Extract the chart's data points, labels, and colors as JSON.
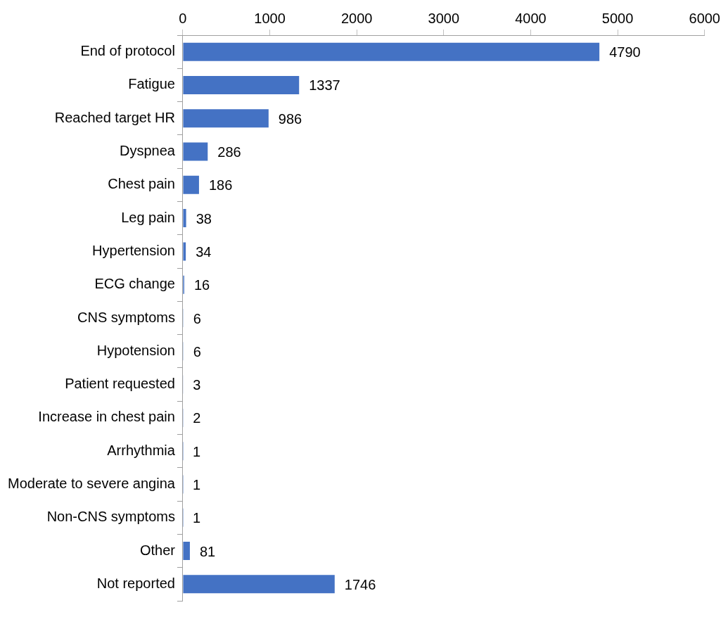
{
  "chart_data": {
    "type": "bar",
    "orientation": "horizontal",
    "categories": [
      "End of protocol",
      "Fatigue",
      "Reached target HR",
      "Dyspnea",
      "Chest pain",
      "Leg pain",
      "Hypertension",
      "ECG change",
      "CNS symptoms",
      "Hypotension",
      "Patient requested",
      "Increase in chest pain",
      "Arrhythmia",
      "Moderate to severe angina",
      "Non-CNS symptoms",
      "Other",
      "Not reported"
    ],
    "values": [
      4790,
      1337,
      986,
      286,
      186,
      38,
      34,
      16,
      6,
      6,
      3,
      2,
      1,
      1,
      1,
      81,
      1746
    ],
    "color": "#4472c4",
    "xlim": [
      0,
      6000
    ],
    "xticks": [
      0,
      1000,
      2000,
      3000,
      4000,
      5000,
      6000
    ],
    "data_labels": true,
    "legend": false
  }
}
